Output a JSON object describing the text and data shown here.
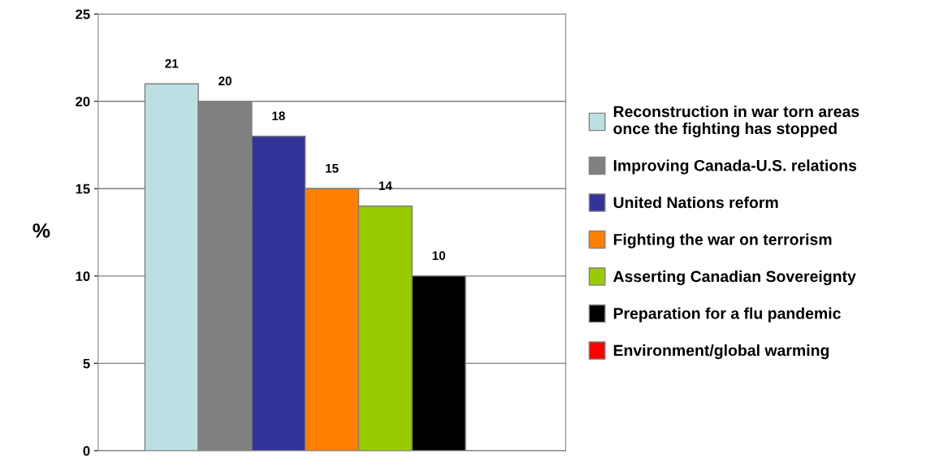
{
  "chart_data": {
    "type": "bar",
    "ylabel": "%",
    "categories": [
      null
    ],
    "series": [
      {
        "name": "Reconstruction in war torn areas\nonce the fighting has stopped",
        "color": "#bbe0e3",
        "values": [
          21
        ]
      },
      {
        "name": "Improving Canada-U.S. relations",
        "color": "#808080",
        "values": [
          20
        ]
      },
      {
        "name": "United Nations reform",
        "color": "#333399",
        "values": [
          18
        ]
      },
      {
        "name": "Fighting the war on terrorism",
        "color": "#ff8000",
        "values": [
          15
        ]
      },
      {
        "name": "Asserting Canadian Sovereignty",
        "color": "#99cc00",
        "values": [
          14
        ]
      },
      {
        "name": "Preparation for a flu pandemic",
        "color": "#000000",
        "values": [
          10
        ]
      },
      {
        "name": "Environment/global warming",
        "color": "#ff0000",
        "values": [
          null
        ]
      }
    ],
    "ylim": [
      0,
      25
    ],
    "yticks": [
      0,
      5,
      10,
      15,
      20,
      25
    ],
    "grid": "y",
    "legend": "right",
    "data_labels": true
  }
}
